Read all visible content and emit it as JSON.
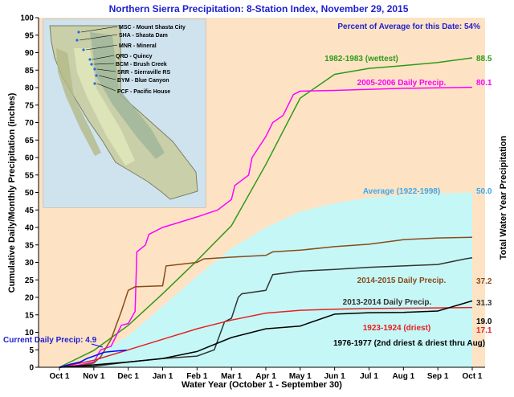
{
  "chart_data": {
    "type": "line",
    "title": "Northern Sierra Precipitation: 8-Station Index, November 29, 2015",
    "annotation": "Percent of Average for this Date: 54%",
    "current_label": "Current Daily Precip: 4.9",
    "xlabel": "Water Year (October 1 - September 30)",
    "ylabel": "Cumulative Daily/Monthly Precipitation (inches)",
    "ylabel_right": "Total Water Year Precipitation",
    "ylim": [
      0,
      100
    ],
    "yticks": [
      "0",
      "5",
      "10",
      "15",
      "20",
      "25",
      "30",
      "35",
      "40",
      "45",
      "50",
      "55",
      "60",
      "65",
      "70",
      "75",
      "80",
      "85",
      "90",
      "95",
      "100"
    ],
    "xticks": [
      "Oct 1",
      "Nov 1",
      "Dec 1",
      "Jan 1",
      "Feb 1",
      "Mar 1",
      "Apr 1",
      "May 1",
      "Jun 1",
      "Jul 1",
      "Aug 1",
      "Sep 1",
      "Oct 1"
    ],
    "grid": false,
    "background_color": "#fde3c4",
    "series": [
      {
        "name": "1982-1983 (wettest)",
        "value_label": "88.5",
        "color": "#2e9a18",
        "label_color": "#2e9a18",
        "x": [
          0,
          1,
          2,
          3,
          4,
          5,
          6,
          7,
          8,
          9,
          10,
          11,
          12
        ],
        "y": [
          0,
          4.8,
          12,
          21,
          30.5,
          40.5,
          58,
          77,
          83.8,
          85.5,
          86.3,
          87.2,
          88.5
        ]
      },
      {
        "name": "2005-2006 Daily Precip.",
        "value_label": "80.1",
        "color": "#ff00ff",
        "label_color": "#ff00ff",
        "x": [
          0,
          0.5,
          1,
          1.2,
          1.5,
          1.8,
          2,
          2.2,
          2.25,
          2.5,
          2.6,
          3,
          3.5,
          4,
          4.3,
          4.6,
          5,
          5.1,
          5.5,
          5.6,
          6,
          6.2,
          6.5,
          6.8,
          7,
          8,
          10,
          12
        ],
        "y": [
          0,
          0.5,
          1.5,
          5,
          6,
          12,
          12.5,
          16,
          33,
          35,
          38,
          40,
          41.5,
          43,
          44,
          45,
          48,
          52,
          55,
          60,
          66,
          70,
          72,
          78,
          79,
          79.2,
          79.8,
          80.1
        ]
      },
      {
        "name": "Average (1922-1998)",
        "value_label": "50.0",
        "color": "#c6f7f7",
        "label_color": "#3aaaee",
        "fill": true,
        "x": [
          0,
          1,
          2,
          3,
          4,
          5,
          6,
          7,
          8,
          9,
          10,
          11,
          12
        ],
        "y": [
          0,
          3,
          9,
          17.5,
          26,
          34,
          40,
          44.5,
          47,
          48.5,
          49.3,
          49.7,
          50
        ]
      },
      {
        "name": "2014-2015 Daily Precip.",
        "value_label": "37.2",
        "color": "#8a4a1a",
        "label_color": "#8a4a1a",
        "x": [
          0,
          0.5,
          1,
          1.2,
          1.5,
          1.8,
          2,
          2.2,
          3,
          3.1,
          4,
          4.2,
          5,
          6,
          6.2,
          7,
          8,
          9,
          10,
          11,
          12
        ],
        "y": [
          0,
          0.3,
          1.2,
          3,
          8,
          16,
          22,
          23,
          23.3,
          29,
          30,
          31,
          31.5,
          32,
          33,
          33.5,
          34.5,
          35.2,
          36.5,
          37,
          37.2
        ]
      },
      {
        "name": "2013-2014 Daily Precip.",
        "value_label": "31.3",
        "color": "#333333",
        "label_color": "#333333",
        "x": [
          0,
          1,
          2,
          3,
          4,
          4.5,
          4.8,
          5,
          5.2,
          5.3,
          6,
          6.2,
          7,
          8,
          9,
          10,
          11,
          11.8,
          12
        ],
        "y": [
          0,
          0.3,
          1.5,
          2.5,
          3.2,
          5,
          13,
          14,
          20,
          21,
          22,
          26.5,
          27.5,
          28,
          28.6,
          29,
          29.4,
          31,
          31.3
        ]
      },
      {
        "name": "1923-1924 (driest)",
        "value_label": "17.1",
        "color": "#e62020",
        "label_color": "#e62020",
        "x": [
          0,
          1,
          2,
          3,
          4,
          5,
          6,
          7,
          8,
          9,
          10,
          11,
          12
        ],
        "y": [
          0,
          2,
          5,
          8,
          11,
          13.5,
          15.5,
          16.3,
          16.6,
          16.8,
          16.9,
          17,
          17.1
        ]
      },
      {
        "name": "1976-1977 (2nd driest & driest thru Aug)",
        "value_label": "19.0",
        "color": "#000000",
        "label_color": "#000000",
        "x": [
          0,
          1,
          2,
          3,
          4,
          5,
          6,
          7,
          8,
          9,
          10,
          11,
          12
        ],
        "y": [
          0,
          0.7,
          1.5,
          2.5,
          4.5,
          8.5,
          11,
          11.8,
          15.2,
          15.6,
          15.7,
          16.1,
          19
        ]
      },
      {
        "name": "Current",
        "value_label": "",
        "color": "#0000ff",
        "label_color": "#0000ff",
        "x": [
          0,
          0.3,
          0.6,
          0.8,
          1,
          1.3,
          1.6,
          1.95
        ],
        "y": [
          0,
          0.8,
          1.5,
          2.5,
          3.2,
          4.3,
          4.6,
          4.9
        ]
      }
    ],
    "map_stations": [
      "MSC - Mount Shasta City",
      "SHA - Shasta Dam",
      "MNR - Mineral",
      "QRD - Quincy",
      "BCM - Brush Creek",
      "SRR - Sierraville RS",
      "BYM - Blue Canyon",
      "PCF - Pacific House"
    ]
  }
}
